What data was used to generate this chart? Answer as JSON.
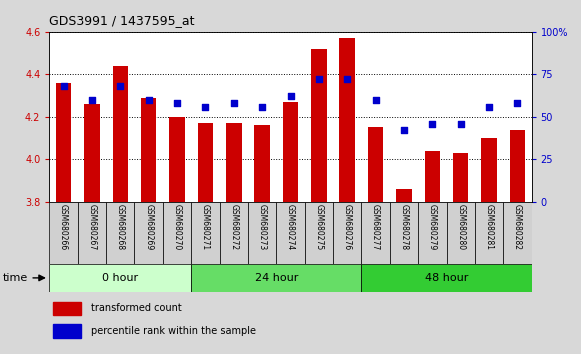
{
  "title": "GDS3991 / 1437595_at",
  "samples": [
    "GSM680266",
    "GSM680267",
    "GSM680268",
    "GSM680269",
    "GSM680270",
    "GSM680271",
    "GSM680272",
    "GSM680273",
    "GSM680274",
    "GSM680275",
    "GSM680276",
    "GSM680277",
    "GSM680278",
    "GSM680279",
    "GSM680280",
    "GSM680281",
    "GSM680282"
  ],
  "transformed_count": [
    4.36,
    4.26,
    4.44,
    4.29,
    4.2,
    4.17,
    4.17,
    4.16,
    4.27,
    4.52,
    4.57,
    4.15,
    3.86,
    4.04,
    4.03,
    4.1,
    4.14
  ],
  "percentile_rank": [
    68,
    60,
    68,
    60,
    58,
    56,
    58,
    56,
    62,
    72,
    72,
    60,
    42,
    46,
    46,
    56,
    58
  ],
  "groups": [
    {
      "label": "0 hour",
      "start": 0,
      "end": 5,
      "color": "#ccffcc"
    },
    {
      "label": "24 hour",
      "start": 5,
      "end": 11,
      "color": "#66dd66"
    },
    {
      "label": "48 hour",
      "start": 11,
      "end": 17,
      "color": "#33cc33"
    }
  ],
  "ylim_left": [
    3.8,
    4.6
  ],
  "ylim_right": [
    0,
    100
  ],
  "bar_color": "#cc0000",
  "dot_color": "#0000cc",
  "bar_width": 0.55,
  "dot_size": 25,
  "background_color": "#d8d8d8",
  "plot_bg_color": "#ffffff",
  "grid_color": "#000000",
  "left_tick_color": "#cc0000",
  "right_tick_color": "#0000cc",
  "time_label": "time",
  "yticks_left": [
    3.8,
    4.0,
    4.2,
    4.4,
    4.6
  ],
  "yticks_right": [
    0,
    25,
    50,
    75,
    100
  ],
  "ytick_labels_right": [
    "0",
    "25",
    "50",
    "75",
    "100%"
  ],
  "legend_items": [
    {
      "label": "transformed count",
      "color": "#cc0000"
    },
    {
      "label": "percentile rank within the sample",
      "color": "#0000cc"
    }
  ]
}
